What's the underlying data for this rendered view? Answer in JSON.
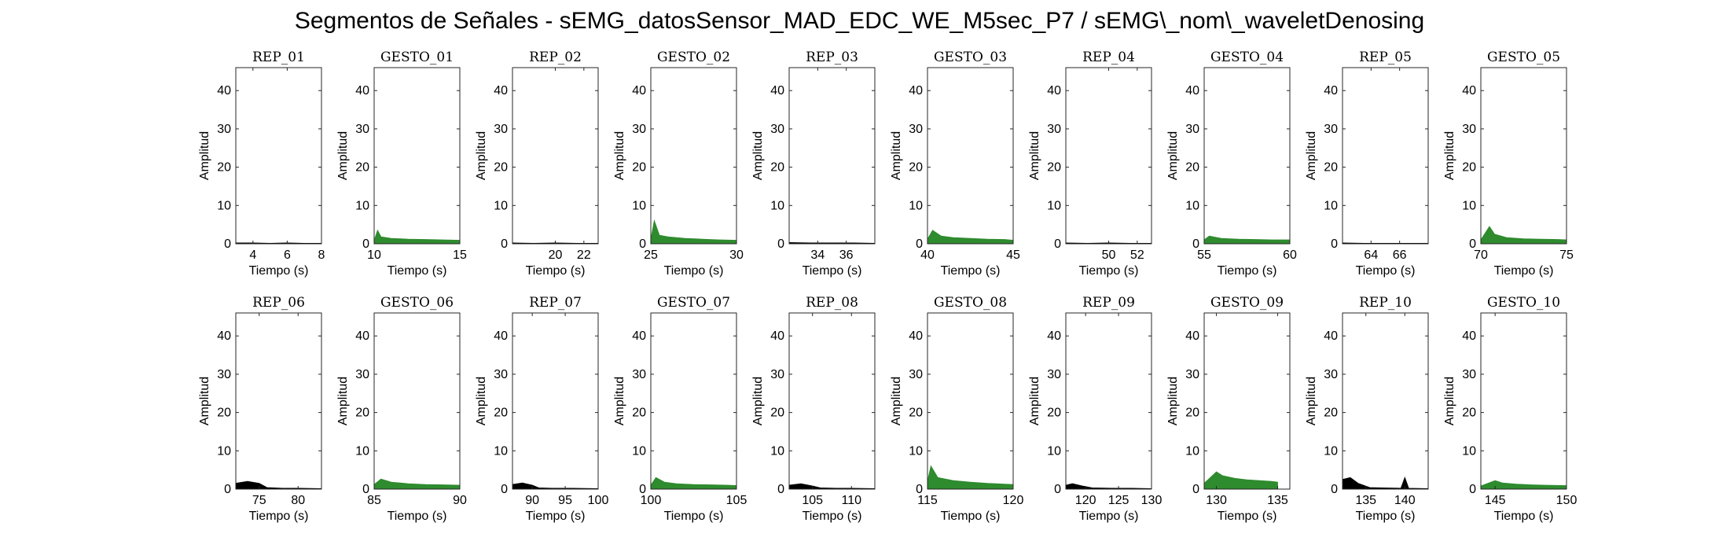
{
  "title": "Segmentos de Señales - sEMG_datosSensor_MAD_EDC_WE_M5sec_P7 / sEMG\\_nom\\_waveletDenosing",
  "colors": {
    "rep": "#000000",
    "gesture": "#2e8b2e",
    "axis": "#262626"
  },
  "chart_data": [
    {
      "type": "area",
      "title": "REP_01",
      "xlabel": "Tiempo (s)",
      "ylabel": "Amplitud",
      "xlim": [
        3,
        8
      ],
      "ylim": [
        0,
        46
      ],
      "xticks": [
        4,
        6,
        8
      ],
      "yticks": [
        0,
        10,
        20,
        30,
        40
      ],
      "series": [
        {
          "color": "black",
          "x": [
            3.0,
            4.0,
            5.0,
            6.0,
            7.0,
            8.0
          ],
          "y": [
            0.2,
            0.2,
            0.1,
            0.2,
            0.1,
            0.1
          ]
        }
      ]
    },
    {
      "type": "area",
      "title": "GESTO_01",
      "xlabel": "Tiempo (s)",
      "ylabel": "Amplitud",
      "xlim": [
        10,
        15
      ],
      "ylim": [
        0,
        46
      ],
      "xticks": [
        10,
        15
      ],
      "yticks": [
        0,
        10,
        20,
        30,
        40
      ],
      "series": [
        {
          "color": "green",
          "x": [
            10.0,
            10.2,
            10.4,
            11.0,
            12.0,
            13.0,
            14.0,
            15.0
          ],
          "y": [
            0.8,
            3.5,
            1.8,
            1.4,
            1.2,
            1.1,
            1.0,
            0.9
          ]
        }
      ]
    },
    {
      "type": "area",
      "title": "REP_02",
      "xlabel": "Tiempo (s)",
      "ylabel": "Amplitud",
      "xlim": [
        17,
        23
      ],
      "ylim": [
        0,
        46
      ],
      "xticks": [
        20,
        22
      ],
      "yticks": [
        0,
        10,
        20,
        30,
        40
      ],
      "series": [
        {
          "color": "black",
          "x": [
            17.0,
            18.5,
            20.0,
            21.5,
            23.0
          ],
          "y": [
            0.2,
            0.1,
            0.2,
            0.1,
            0.1
          ]
        }
      ]
    },
    {
      "type": "area",
      "title": "GESTO_02",
      "xlabel": "Tiempo (s)",
      "ylabel": "Amplitud",
      "xlim": [
        25,
        30
      ],
      "ylim": [
        0,
        46
      ],
      "xticks": [
        25,
        30
      ],
      "yticks": [
        0,
        10,
        20,
        30,
        40
      ],
      "series": [
        {
          "color": "green",
          "x": [
            25.0,
            25.2,
            25.5,
            26.0,
            27.0,
            28.0,
            29.0,
            30.0
          ],
          "y": [
            1.0,
            6.0,
            2.2,
            1.8,
            1.4,
            1.2,
            1.0,
            0.9
          ]
        }
      ]
    },
    {
      "type": "area",
      "title": "REP_03",
      "xlabel": "Tiempo (s)",
      "ylabel": "Amplitud",
      "xlim": [
        32,
        38
      ],
      "ylim": [
        0,
        46
      ],
      "xticks": [
        34,
        36
      ],
      "yticks": [
        0,
        10,
        20,
        30,
        40
      ],
      "series": [
        {
          "color": "black",
          "x": [
            32.0,
            33.5,
            35.0,
            36.5,
            38.0
          ],
          "y": [
            0.3,
            0.2,
            0.2,
            0.2,
            0.1
          ]
        }
      ]
    },
    {
      "type": "area",
      "title": "GESTO_03",
      "xlabel": "Tiempo (s)",
      "ylabel": "Amplitud",
      "xlim": [
        40,
        45
      ],
      "ylim": [
        0,
        46
      ],
      "xticks": [
        40,
        45
      ],
      "yticks": [
        0,
        10,
        20,
        30,
        40
      ],
      "series": [
        {
          "color": "green",
          "x": [
            40.0,
            40.3,
            40.8,
            41.5,
            42.5,
            43.5,
            44.5,
            45.0
          ],
          "y": [
            1.2,
            3.5,
            2.0,
            1.6,
            1.4,
            1.2,
            1.1,
            0.9
          ]
        }
      ]
    },
    {
      "type": "area",
      "title": "REP_04",
      "xlabel": "Tiempo (s)",
      "ylabel": "Amplitud",
      "xlim": [
        47,
        53
      ],
      "ylim": [
        0,
        46
      ],
      "xticks": [
        50,
        52
      ],
      "yticks": [
        0,
        10,
        20,
        30,
        40
      ],
      "series": [
        {
          "color": "black",
          "x": [
            47.0,
            48.5,
            50.0,
            51.5,
            53.0
          ],
          "y": [
            0.2,
            0.1,
            0.2,
            0.1,
            0.1
          ]
        }
      ]
    },
    {
      "type": "area",
      "title": "GESTO_04",
      "xlabel": "Tiempo (s)",
      "ylabel": "Amplitud",
      "xlim": [
        55,
        60
      ],
      "ylim": [
        0,
        46
      ],
      "xticks": [
        55,
        60
      ],
      "yticks": [
        0,
        10,
        20,
        30,
        40
      ],
      "series": [
        {
          "color": "green",
          "x": [
            55.0,
            55.3,
            56.0,
            57.0,
            58.0,
            59.0,
            60.0
          ],
          "y": [
            1.0,
            2.0,
            1.4,
            1.2,
            1.1,
            1.0,
            1.0
          ]
        }
      ]
    },
    {
      "type": "area",
      "title": "REP_05",
      "xlabel": "Tiempo (s)",
      "ylabel": "Amplitud",
      "xlim": [
        62,
        68
      ],
      "ylim": [
        0,
        46
      ],
      "xticks": [
        64,
        66
      ],
      "yticks": [
        0,
        10,
        20,
        30,
        40
      ],
      "series": [
        {
          "color": "black",
          "x": [
            62.0,
            63.5,
            65.0,
            66.5,
            68.0
          ],
          "y": [
            0.2,
            0.1,
            0.1,
            0.1,
            0.1
          ]
        }
      ]
    },
    {
      "type": "area",
      "title": "GESTO_05",
      "xlabel": "Tiempo (s)",
      "ylabel": "Amplitud",
      "xlim": [
        70,
        75
      ],
      "ylim": [
        0,
        46
      ],
      "xticks": [
        70,
        75
      ],
      "yticks": [
        0,
        10,
        20,
        30,
        40
      ],
      "series": [
        {
          "color": "green",
          "x": [
            70.0,
            70.5,
            70.8,
            71.5,
            72.5,
            73.5,
            74.5,
            75.0
          ],
          "y": [
            1.0,
            4.5,
            2.5,
            1.6,
            1.3,
            1.2,
            1.1,
            1.0
          ]
        }
      ]
    },
    {
      "type": "area",
      "title": "REP_06",
      "xlabel": "Tiempo (s)",
      "ylabel": "Amplitud",
      "xlim": [
        72,
        83
      ],
      "ylim": [
        0,
        46
      ],
      "xticks": [
        75,
        80
      ],
      "yticks": [
        0,
        10,
        20,
        30,
        40
      ],
      "series": [
        {
          "color": "black",
          "x": [
            72.0,
            73.5,
            75.0,
            76.0,
            78.0,
            80.0,
            83.0
          ],
          "y": [
            1.5,
            2.0,
            1.5,
            0.4,
            0.2,
            0.2,
            0.1
          ]
        }
      ]
    },
    {
      "type": "area",
      "title": "GESTO_06",
      "xlabel": "Tiempo (s)",
      "ylabel": "Amplitud",
      "xlim": [
        85,
        90
      ],
      "ylim": [
        0,
        46
      ],
      "xticks": [
        85,
        90
      ],
      "yticks": [
        0,
        10,
        20,
        30,
        40
      ],
      "series": [
        {
          "color": "green",
          "x": [
            85.0,
            85.4,
            86.0,
            87.0,
            88.0,
            89.0,
            90.0
          ],
          "y": [
            1.2,
            2.6,
            1.8,
            1.4,
            1.2,
            1.1,
            1.0
          ]
        }
      ]
    },
    {
      "type": "area",
      "title": "REP_07",
      "xlabel": "Tiempo (s)",
      "ylabel": "Amplitud",
      "xlim": [
        87,
        100
      ],
      "ylim": [
        0,
        46
      ],
      "xticks": [
        90,
        95,
        100
      ],
      "yticks": [
        0,
        10,
        20,
        30,
        40
      ],
      "series": [
        {
          "color": "black",
          "x": [
            87.0,
            88.5,
            90.0,
            91.0,
            93.0,
            96.0,
            100.0
          ],
          "y": [
            1.2,
            1.6,
            1.0,
            0.3,
            0.2,
            0.2,
            0.1
          ]
        }
      ]
    },
    {
      "type": "area",
      "title": "GESTO_07",
      "xlabel": "Tiempo (s)",
      "ylabel": "Amplitud",
      "xlim": [
        100,
        105
      ],
      "ylim": [
        0,
        46
      ],
      "xticks": [
        100,
        105
      ],
      "yticks": [
        0,
        10,
        20,
        30,
        40
      ],
      "series": [
        {
          "color": "green",
          "x": [
            100.0,
            100.3,
            100.8,
            101.5,
            102.5,
            103.5,
            104.5,
            105.0
          ],
          "y": [
            1.0,
            3.0,
            1.8,
            1.4,
            1.2,
            1.1,
            1.0,
            0.9
          ]
        }
      ]
    },
    {
      "type": "area",
      "title": "REP_08",
      "xlabel": "Tiempo (s)",
      "ylabel": "Amplitud",
      "xlim": [
        102,
        113
      ],
      "ylim": [
        0,
        46
      ],
      "xticks": [
        105,
        110
      ],
      "yticks": [
        0,
        10,
        20,
        30,
        40
      ],
      "series": [
        {
          "color": "black",
          "x": [
            102.0,
            103.5,
            105.0,
            106.0,
            108.0,
            110.0,
            113.0
          ],
          "y": [
            1.0,
            1.4,
            0.8,
            0.3,
            0.2,
            0.2,
            0.1
          ]
        }
      ]
    },
    {
      "type": "area",
      "title": "GESTO_08",
      "xlabel": "Tiempo (s)",
      "ylabel": "Amplitud",
      "xlim": [
        115,
        120
      ],
      "ylim": [
        0,
        46
      ],
      "xticks": [
        115,
        120
      ],
      "yticks": [
        0,
        10,
        20,
        30,
        40
      ],
      "series": [
        {
          "color": "green",
          "x": [
            115.0,
            115.2,
            115.6,
            116.5,
            117.5,
            118.5,
            119.5,
            120.0
          ],
          "y": [
            2.0,
            6.0,
            3.0,
            2.2,
            1.8,
            1.5,
            1.3,
            1.2
          ]
        }
      ]
    },
    {
      "type": "area",
      "title": "REP_09",
      "xlabel": "Tiempo (s)",
      "ylabel": "Amplitud",
      "xlim": [
        117,
        130
      ],
      "ylim": [
        0,
        46
      ],
      "xticks": [
        120,
        125,
        130
      ],
      "yticks": [
        0,
        10,
        20,
        30,
        40
      ],
      "series": [
        {
          "color": "black",
          "x": [
            117.0,
            118.0,
            119.5,
            121.0,
            124.0,
            127.0,
            130.0
          ],
          "y": [
            1.0,
            1.4,
            0.8,
            0.3,
            0.2,
            0.2,
            0.1
          ]
        }
      ]
    },
    {
      "type": "area",
      "title": "GESTO_09",
      "xlabel": "Tiempo (s)",
      "ylabel": "Amplitud",
      "xlim": [
        129,
        136
      ],
      "ylim": [
        0,
        46
      ],
      "xticks": [
        130,
        135
      ],
      "yticks": [
        0,
        10,
        20,
        30,
        40
      ],
      "series": [
        {
          "color": "green",
          "x": [
            129.0,
            130.0,
            130.5,
            131.5,
            132.5,
            133.5,
            134.5,
            135.0
          ],
          "y": [
            1.5,
            4.5,
            3.5,
            2.8,
            2.4,
            2.2,
            2.0,
            1.8
          ]
        }
      ]
    },
    {
      "type": "area",
      "title": "REP_10",
      "xlabel": "Tiempo (s)",
      "ylabel": "Amplitud",
      "xlim": [
        132,
        143
      ],
      "ylim": [
        0,
        46
      ],
      "xticks": [
        135,
        140
      ],
      "yticks": [
        0,
        10,
        20,
        30,
        40
      ],
      "series": [
        {
          "color": "black",
          "x": [
            132.0,
            133.0,
            134.0,
            135.5,
            137.0,
            139.5,
            140.0,
            140.5,
            143.0
          ],
          "y": [
            2.5,
            3.0,
            1.5,
            0.4,
            0.3,
            0.2,
            3.0,
            0.2,
            0.1
          ]
        }
      ]
    },
    {
      "type": "area",
      "title": "GESTO_10",
      "xlabel": "Tiempo (s)",
      "ylabel": "Amplitud",
      "xlim": [
        144,
        150
      ],
      "ylim": [
        0,
        46
      ],
      "xticks": [
        145,
        150
      ],
      "yticks": [
        0,
        10,
        20,
        30,
        40
      ],
      "series": [
        {
          "color": "green",
          "x": [
            144.0,
            145.0,
            145.5,
            146.5,
            147.5,
            148.5,
            150.0
          ],
          "y": [
            0.8,
            2.2,
            1.6,
            1.3,
            1.1,
            1.0,
            0.9
          ]
        }
      ]
    }
  ]
}
